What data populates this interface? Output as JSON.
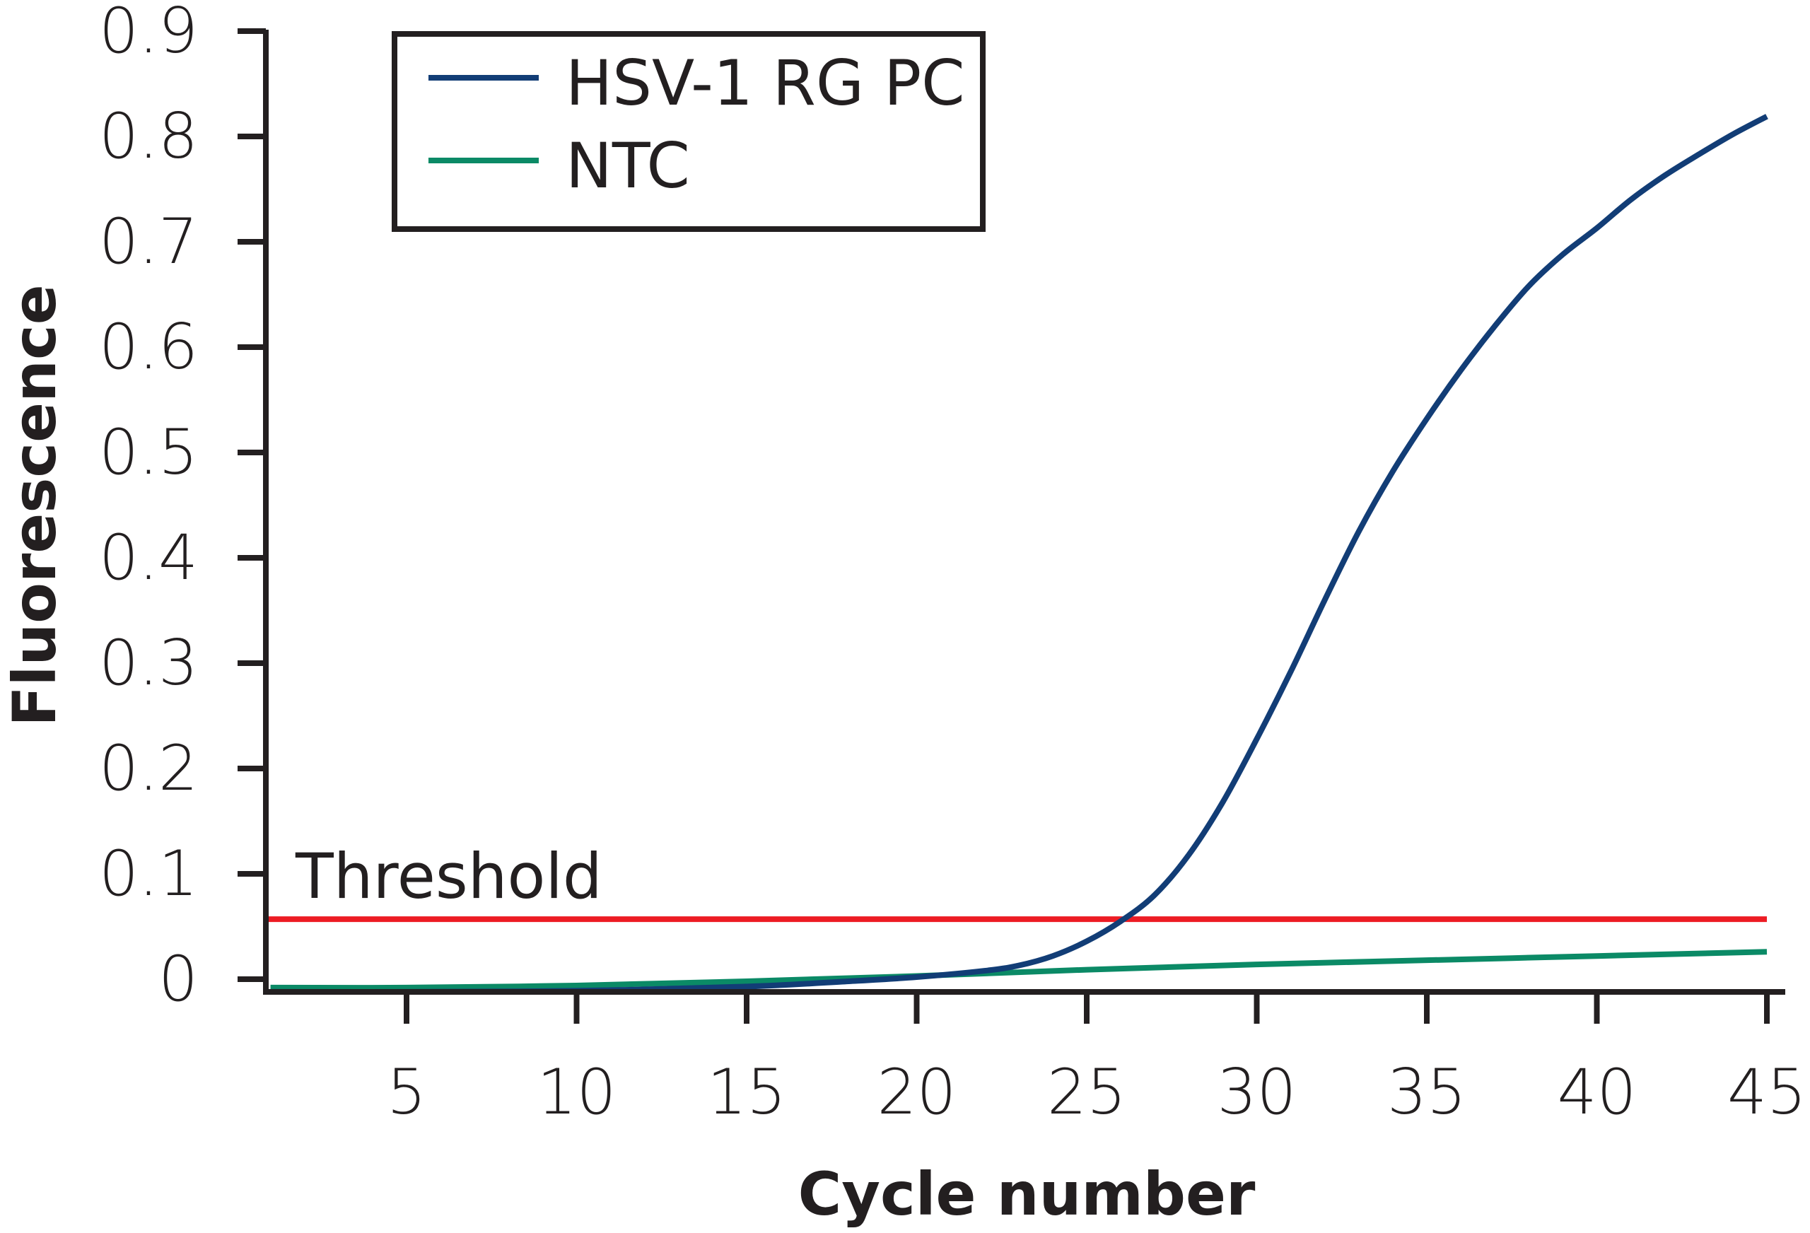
{
  "chart_data": {
    "type": "line",
    "title": "",
    "xlabel": "Cycle number",
    "ylabel": "Fluorescence",
    "xlim": [
      1,
      45
    ],
    "ylim": [
      -0.015,
      0.9
    ],
    "x_ticks": [
      5,
      10,
      15,
      20,
      25,
      30,
      35,
      40,
      45
    ],
    "x_tick_labels": [
      "5",
      "10",
      "15",
      "20",
      "25",
      "30",
      "35",
      "40",
      "45"
    ],
    "y_ticks": [
      0,
      0.1,
      0.2,
      0.3,
      0.4,
      0.5,
      0.6,
      0.7,
      0.8,
      0.9
    ],
    "y_tick_labels": [
      "0",
      "0.1",
      "0.2",
      "0.3",
      "0.4",
      "0.5",
      "0.6",
      "0.7",
      "0.8",
      "0.9"
    ],
    "grid": false,
    "legend": {
      "placement": "top-left",
      "entries": [
        "HSV-1 RG PC",
        "NTC"
      ]
    },
    "series": [
      {
        "name": "HSV-1 RG PC",
        "color": "#123d76",
        "x": [
          1,
          5,
          10,
          15,
          18,
          20,
          22,
          23,
          24,
          25,
          26,
          27,
          28,
          29,
          30,
          31,
          32,
          33,
          34,
          35,
          36,
          37,
          38,
          39,
          40,
          41,
          42,
          43,
          44,
          45
        ],
        "y": [
          -0.012,
          -0.012,
          -0.011,
          -0.007,
          -0.002,
          0.002,
          0.008,
          0.013,
          0.022,
          0.036,
          0.055,
          0.08,
          0.118,
          0.168,
          0.228,
          0.292,
          0.36,
          0.425,
          0.482,
          0.532,
          0.578,
          0.62,
          0.658,
          0.688,
          0.713,
          0.74,
          0.763,
          0.783,
          0.802,
          0.819
        ]
      },
      {
        "name": "NTC",
        "color": "#0b8a66",
        "x": [
          1,
          5,
          10,
          15,
          20,
          25,
          30,
          35,
          40,
          45
        ],
        "y": [
          -0.008,
          -0.008,
          -0.006,
          -0.002,
          0.003,
          0.009,
          0.014,
          0.018,
          0.022,
          0.026
        ]
      }
    ],
    "annotations": [
      {
        "type": "hline",
        "label": "Threshold",
        "y": 0.057,
        "color": "#ed1c24"
      }
    ]
  }
}
